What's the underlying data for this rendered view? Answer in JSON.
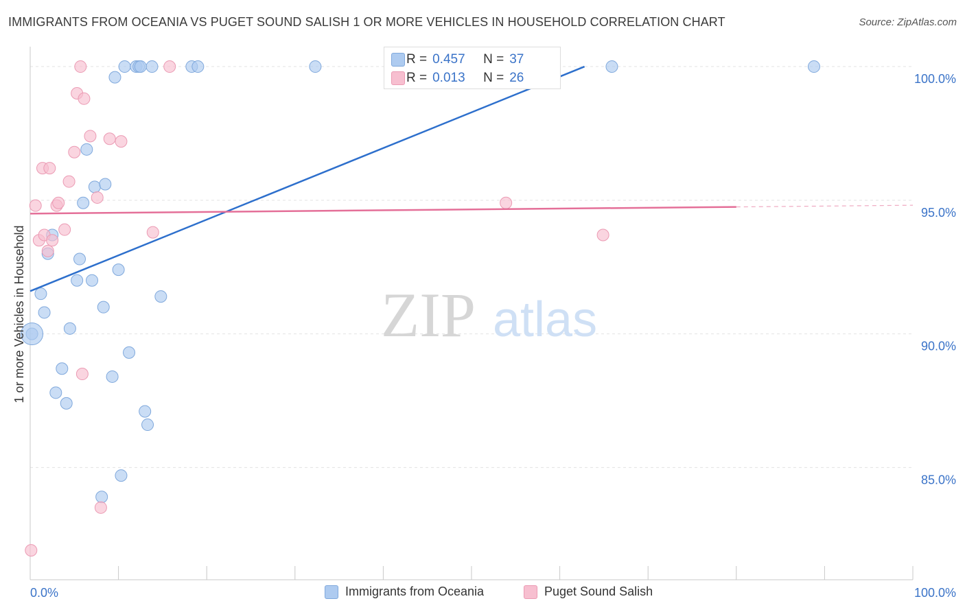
{
  "title": "IMMIGRANTS FROM OCEANIA VS PUGET SOUND SALISH 1 OR MORE VEHICLES IN HOUSEHOLD CORRELATION CHART",
  "source": "Source: ZipAtlas.com",
  "watermark": {
    "zip": "ZIP",
    "atlas": "atlas"
  },
  "stats": [
    {
      "r_label": "R =",
      "r_value": "0.457",
      "n_label": "N =",
      "n_value": "37"
    },
    {
      "r_label": "R =",
      "r_value": "0.013",
      "n_label": "N =",
      "n_value": "26"
    }
  ],
  "legend": [
    {
      "label": "Immigrants from Oceania"
    },
    {
      "label": "Puget Sound Salish"
    }
  ],
  "colors": {
    "blue_fill": "#aecbf0",
    "blue_stroke": "#7fa8dc",
    "blue_line": "#2d6fcc",
    "pink_fill": "#f7bfd0",
    "pink_stroke": "#eb9ab3",
    "pink_line": "#e46f98",
    "axis_label": "#3a73c8",
    "grid": "#e3e3e3"
  },
  "chart_data": {
    "type": "scatter",
    "title": "IMMIGRANTS FROM OCEANIA VS PUGET SOUND SALISH 1 OR MORE VEHICLES IN HOUSEHOLD CORRELATION CHART",
    "xlabel": "",
    "ylabel": "1 or more Vehicles in Household",
    "x_tick_labels": [
      "0.0%",
      "100.0%"
    ],
    "y_tick_labels": [
      "85.0%",
      "90.0%",
      "95.0%",
      "100.0%"
    ],
    "xlim": [
      0,
      100
    ],
    "ylim": [
      80.8,
      100.9
    ],
    "grid": true,
    "legend_position": "bottom",
    "series": [
      {
        "name": "Immigrants from Oceania",
        "points": [
          [
            0.2,
            90.0
          ],
          [
            1.2,
            91.5
          ],
          [
            1.6,
            90.8
          ],
          [
            2.0,
            93.0
          ],
          [
            2.5,
            93.7
          ],
          [
            2.9,
            87.8
          ],
          [
            3.6,
            88.7
          ],
          [
            4.1,
            87.4
          ],
          [
            4.5,
            90.2
          ],
          [
            5.3,
            92.0
          ],
          [
            5.6,
            92.8
          ],
          [
            6.0,
            94.9
          ],
          [
            6.4,
            96.9
          ],
          [
            7.0,
            92.0
          ],
          [
            7.3,
            95.5
          ],
          [
            8.1,
            83.9
          ],
          [
            8.3,
            91.0
          ],
          [
            8.5,
            95.6
          ],
          [
            9.3,
            88.4
          ],
          [
            9.6,
            99.6
          ],
          [
            10.0,
            92.4
          ],
          [
            10.3,
            84.7
          ],
          [
            10.7,
            100.0
          ],
          [
            11.2,
            89.3
          ],
          [
            12.0,
            100.0
          ],
          [
            12.3,
            100.0
          ],
          [
            12.5,
            100.0
          ],
          [
            13.0,
            87.1
          ],
          [
            13.3,
            86.6
          ],
          [
            13.8,
            100.0
          ],
          [
            14.8,
            91.4
          ],
          [
            18.3,
            100.0
          ],
          [
            19.0,
            100.0
          ],
          [
            32.3,
            100.0
          ],
          [
            65.9,
            100.0
          ],
          [
            88.8,
            100.0
          ],
          [
            0.2,
            90.0
          ]
        ]
      },
      {
        "name": "Puget Sound Salish",
        "points": [
          [
            0.1,
            81.9
          ],
          [
            0.6,
            94.8
          ],
          [
            1.0,
            93.5
          ],
          [
            1.4,
            96.2
          ],
          [
            1.6,
            93.7
          ],
          [
            2.0,
            93.1
          ],
          [
            2.2,
            96.2
          ],
          [
            2.5,
            93.5
          ],
          [
            3.0,
            94.8
          ],
          [
            3.2,
            94.9
          ],
          [
            3.9,
            93.9
          ],
          [
            4.4,
            95.7
          ],
          [
            5.0,
            96.8
          ],
          [
            5.3,
            99.0
          ],
          [
            5.7,
            100.0
          ],
          [
            5.9,
            88.5
          ],
          [
            6.1,
            98.8
          ],
          [
            6.8,
            97.4
          ],
          [
            7.6,
            95.1
          ],
          [
            8.0,
            83.5
          ],
          [
            9.0,
            97.3
          ],
          [
            10.3,
            97.2
          ],
          [
            13.9,
            93.8
          ],
          [
            15.8,
            100.0
          ],
          [
            53.9,
            94.9
          ],
          [
            64.9,
            93.7
          ]
        ]
      }
    ],
    "trendlines": [
      {
        "series": "Immigrants from Oceania",
        "x": [
          0,
          62.8
        ],
        "y": [
          91.6,
          100.0
        ]
      },
      {
        "series": "Puget Sound Salish",
        "x": [
          0,
          80.0
        ],
        "y": [
          94.5,
          94.75
        ],
        "dashed_extension_to_x": 100
      }
    ]
  }
}
